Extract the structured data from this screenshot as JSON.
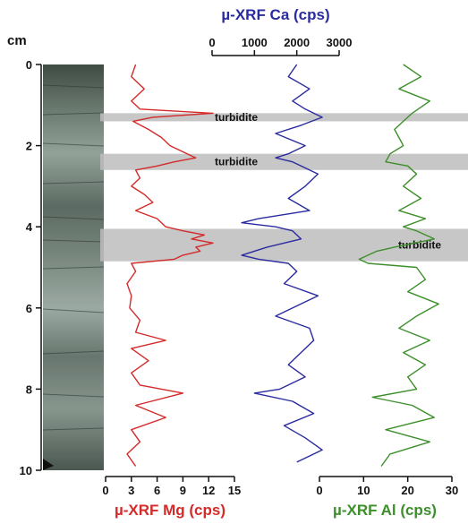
{
  "chart_data": {
    "type": "line",
    "orientation": "depth-profile",
    "depth_axis": {
      "label": "cm",
      "range": [
        0,
        10
      ],
      "ticks": [
        "0",
        "2",
        "4",
        "6",
        "8",
        "10"
      ],
      "inverted": true
    },
    "panels": [
      {
        "key": "mg",
        "title": "µ-XRF Mg (cps)",
        "color": "#d42a2a",
        "axis_position": "bottom",
        "range": [
          0,
          15
        ],
        "ticks": [
          "0",
          "3",
          "6",
          "9",
          "12",
          "15"
        ],
        "depth": [
          0.0,
          0.3,
          0.6,
          0.9,
          1.1,
          1.2,
          1.3,
          1.4,
          1.6,
          1.8,
          2.0,
          2.2,
          2.3,
          2.4,
          2.5,
          2.6,
          2.8,
          3.0,
          3.2,
          3.4,
          3.6,
          3.8,
          4.0,
          4.1,
          4.2,
          4.3,
          4.4,
          4.5,
          4.6,
          4.7,
          4.8,
          4.9,
          5.1,
          5.4,
          5.7,
          6.0,
          6.3,
          6.6,
          6.8,
          7.0,
          7.3,
          7.6,
          7.9,
          8.1,
          8.4,
          8.7,
          9.0,
          9.3,
          9.6,
          9.9
        ],
        "values": [
          3.5,
          3.0,
          4.5,
          3.0,
          4.0,
          12.5,
          5.5,
          3.2,
          5.0,
          6.5,
          7.5,
          9.5,
          10.5,
          8.0,
          6.0,
          3.5,
          4.0,
          3.0,
          4.5,
          5.5,
          3.5,
          6.0,
          7.0,
          9.0,
          11.5,
          10.0,
          12.5,
          10.5,
          11.0,
          9.0,
          8.0,
          3.0,
          3.5,
          2.5,
          3.0,
          2.8,
          4.0,
          3.5,
          7.0,
          3.0,
          5.0,
          3.0,
          4.0,
          9.0,
          3.5,
          7.0,
          3.0,
          4.0,
          2.5,
          3.5
        ]
      },
      {
        "key": "ca",
        "title": "µ-XRF Ca (cps)",
        "color": "#2b2ba0",
        "axis_position": "top",
        "range": [
          0,
          3000
        ],
        "ticks": [
          "0",
          "1000",
          "2000",
          "3000"
        ],
        "depth": [
          0.0,
          0.3,
          0.6,
          0.9,
          1.1,
          1.3,
          1.5,
          1.7,
          2.0,
          2.2,
          2.3,
          2.4,
          2.5,
          2.7,
          3.0,
          3.3,
          3.6,
          3.8,
          3.9,
          4.0,
          4.1,
          4.3,
          4.5,
          4.7,
          4.8,
          4.9,
          5.1,
          5.4,
          5.7,
          5.9,
          6.2,
          6.5,
          6.8,
          7.1,
          7.4,
          7.7,
          8.0,
          8.1,
          8.3,
          8.6,
          8.9,
          9.2,
          9.5,
          9.8
        ],
        "values": [
          2000,
          1800,
          2300,
          1900,
          2200,
          2600,
          2100,
          1500,
          2200,
          1800,
          1500,
          1900,
          2100,
          2500,
          2200,
          1800,
          2300,
          1100,
          700,
          1500,
          1900,
          2100,
          1300,
          700,
          1100,
          1800,
          2000,
          1700,
          2500,
          2100,
          1500,
          2300,
          2400,
          2100,
          1800,
          2200,
          1600,
          1000,
          1900,
          2400,
          1700,
          2200,
          2600,
          2000
        ]
      },
      {
        "key": "al",
        "title": "µ-XRF Al (cps)",
        "color": "#3d8f2c",
        "axis_position": "bottom",
        "range": [
          0,
          30
        ],
        "ticks": [
          "0",
          "10",
          "20",
          "30"
        ],
        "depth": [
          0.0,
          0.3,
          0.6,
          0.9,
          1.2,
          1.4,
          1.6,
          1.8,
          2.0,
          2.2,
          2.4,
          2.5,
          2.7,
          3.0,
          3.3,
          3.6,
          3.8,
          4.0,
          4.1,
          4.3,
          4.5,
          4.6,
          4.8,
          4.9,
          5.0,
          5.3,
          5.6,
          5.9,
          6.2,
          6.5,
          6.8,
          7.1,
          7.4,
          7.7,
          8.0,
          8.2,
          8.4,
          8.7,
          9.0,
          9.3,
          9.6,
          9.9
        ],
        "values": [
          19,
          23,
          18,
          25,
          21,
          19,
          17,
          18,
          19,
          16,
          15,
          20,
          22,
          19,
          23,
          18,
          24,
          19,
          22,
          26,
          17,
          13,
          9,
          11,
          22,
          24,
          20,
          27,
          22,
          18,
          25,
          19,
          24,
          20,
          22,
          12,
          21,
          26,
          15,
          25,
          16,
          14
        ]
      }
    ],
    "bands": [
      {
        "top": 1.2,
        "bottom": 1.4,
        "label": "turbidite"
      },
      {
        "top": 2.2,
        "bottom": 2.6,
        "label": "turbidite"
      },
      {
        "top": 4.05,
        "bottom": 4.85,
        "label": "turbidite"
      }
    ]
  }
}
